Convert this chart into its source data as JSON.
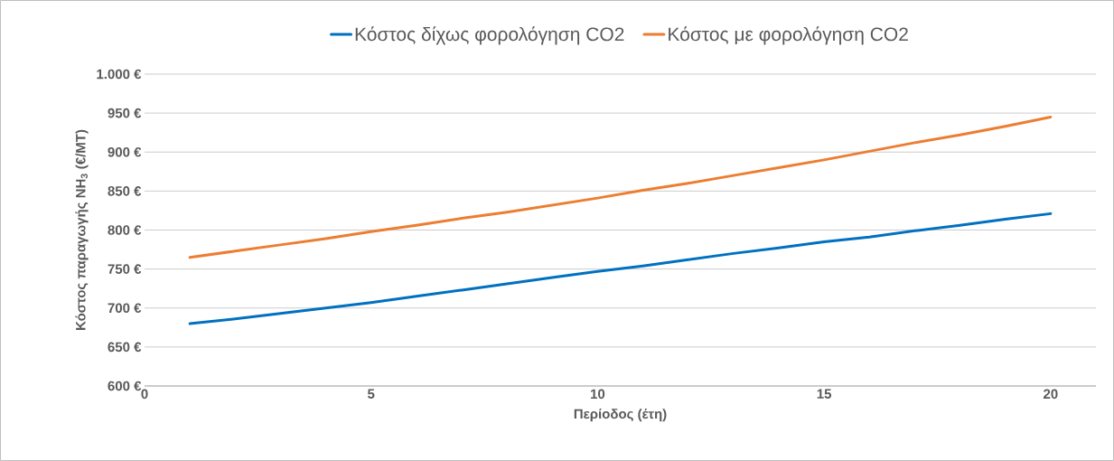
{
  "chart_data": {
    "type": "line",
    "xlabel": "Περίοδος (έτη)",
    "ylabel": "Κόστος παραγωγής NH$_{3}$ (€/MT)",
    "x": [
      1,
      2,
      3,
      4,
      5,
      6,
      7,
      8,
      9,
      10,
      11,
      12,
      13,
      14,
      15,
      16,
      17,
      18,
      19,
      20
    ],
    "series": [
      {
        "name": "Κόστος δίχως φορολόγηση CO2",
        "color": "#0070c0",
        "values": [
          680,
          686,
          693,
          700,
          707,
          715,
          723,
          731,
          739,
          747,
          754,
          762,
          770,
          777,
          785,
          791,
          799,
          806,
          814,
          821
        ]
      },
      {
        "name": "Κόστος με φορολόγηση CO2",
        "color": "#ed7d31",
        "values": [
          765,
          773,
          781,
          789,
          798,
          806,
          815,
          823,
          832,
          841,
          851,
          860,
          870,
          880,
          890,
          901,
          912,
          922,
          933,
          945
        ]
      }
    ],
    "xlim": [
      0,
      21
    ],
    "xticks": [
      0,
      5,
      10,
      15,
      20
    ],
    "ylim": [
      600,
      1000
    ],
    "yticks": [
      {
        "value": 600,
        "label": "600 €"
      },
      {
        "value": 650,
        "label": "650 €"
      },
      {
        "value": 700,
        "label": "700 €"
      },
      {
        "value": 750,
        "label": "750 €"
      },
      {
        "value": 800,
        "label": "800 €"
      },
      {
        "value": 850,
        "label": "850 €"
      },
      {
        "value": 900,
        "label": "900 €"
      },
      {
        "value": 950,
        "label": "950 €"
      },
      {
        "value": 1000,
        "label": "1.000 €"
      }
    ],
    "grid": "y",
    "legend": "top",
    "marker": "none",
    "line_style": "solid"
  }
}
